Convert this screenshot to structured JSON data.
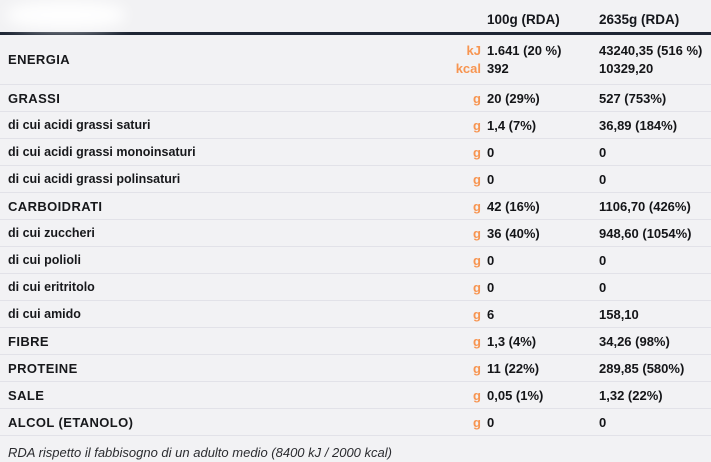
{
  "table": {
    "columns": {
      "amount": "100g (RDA)",
      "reference": "2635g (RDA)"
    },
    "energia": {
      "label": "ENERGIA",
      "lines": [
        {
          "unit": "kJ",
          "amount": "1.641 (20 %)",
          "reference": "43240,35 (516 %)"
        },
        {
          "unit": "kcal",
          "amount": "392",
          "reference": "10329,20"
        }
      ]
    },
    "rows": [
      {
        "label": "GRASSI",
        "unit": "g",
        "amount": "20 (29%)",
        "reference": "527 (753%)"
      },
      {
        "label": "di cui acidi grassi saturi",
        "unit": "g",
        "amount": "1,4 (7%)",
        "reference": "36,89 (184%)"
      },
      {
        "label": "di cui acidi grassi monoinsaturi",
        "unit": "g",
        "amount": "0",
        "reference": "0"
      },
      {
        "label": "di cui acidi grassi polinsaturi",
        "unit": "g",
        "amount": "0",
        "reference": "0"
      },
      {
        "label": "CARBOIDRATI",
        "unit": "g",
        "amount": "42 (16%)",
        "reference": "1106,70 (426%)"
      },
      {
        "label": "di cui zuccheri",
        "unit": "g",
        "amount": "36 (40%)",
        "reference": "948,60 (1054%)"
      },
      {
        "label": "di cui polioli",
        "unit": "g",
        "amount": "0",
        "reference": "0"
      },
      {
        "label": "di cui eritritolo",
        "unit": "g",
        "amount": "0",
        "reference": "0"
      },
      {
        "label": "di cui amido",
        "unit": "g",
        "amount": "6",
        "reference": "158,10"
      },
      {
        "label": "FIBRE",
        "unit": "g",
        "amount": "1,3 (4%)",
        "reference": "34,26 (98%)"
      },
      {
        "label": "PROTEINE",
        "unit": "g",
        "amount": "11 (22%)",
        "reference": "289,85 (580%)"
      },
      {
        "label": "SALE",
        "unit": "g",
        "amount": "0,05 (1%)",
        "reference": "1,32 (22%)"
      },
      {
        "label": "ALCOL (ETANOLO)",
        "unit": "g",
        "amount": "0",
        "reference": "0"
      }
    ],
    "footnote": "RDA rispetto il fabbisogno di un adulto medio (8400 kJ / 2000 kcal)"
  },
  "colors": {
    "accent_orange": "#f79551",
    "header_rule": "#1e2634",
    "divider": "#e2e2e8",
    "background": "#f2f2f4",
    "text": "#17181b"
  }
}
